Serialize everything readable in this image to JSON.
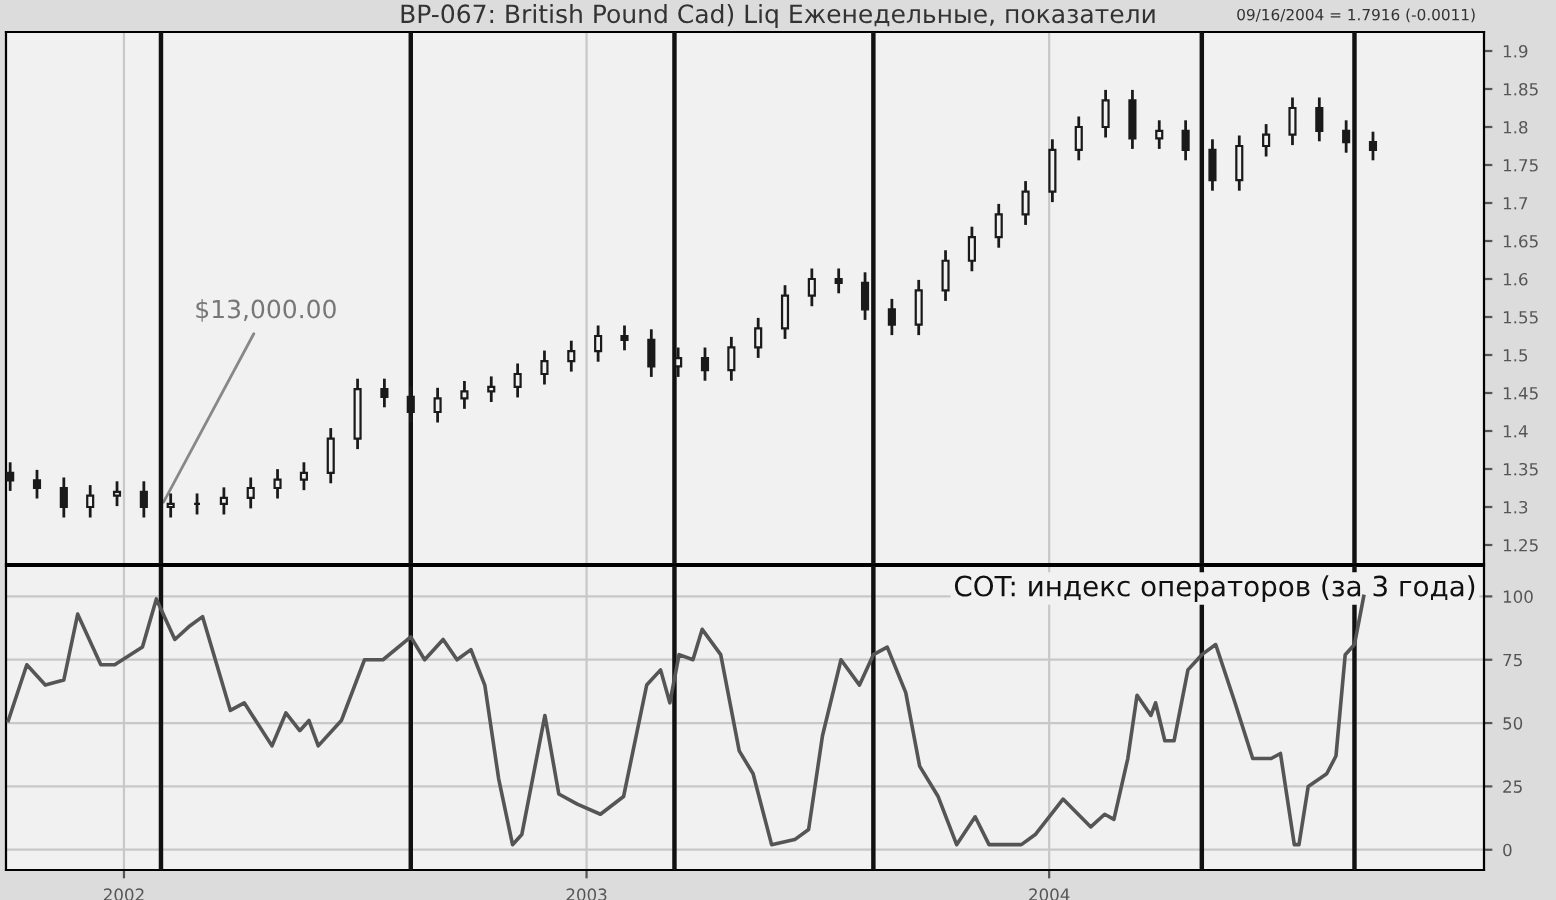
{
  "chart_data": [
    {
      "type": "candlestick",
      "title": "BP-067: British Pound Cad) Liq Еженедельные, показатели",
      "x": [
        2001.754,
        2001.812,
        2001.87,
        2001.927,
        2001.985,
        2002.043,
        2002.101,
        2002.158,
        2002.216,
        2002.274,
        2002.332,
        2002.389,
        2002.447,
        2002.505,
        2002.563,
        2002.62,
        2002.678,
        2002.736,
        2002.794,
        2002.851,
        2002.909,
        2002.967,
        2003.025,
        2003.082,
        2003.14,
        2003.198,
        2003.256,
        2003.313,
        2003.371,
        2003.429,
        2003.487,
        2003.545,
        2003.602,
        2003.66,
        2003.718,
        2003.776,
        2003.833,
        2003.891,
        2003.949,
        2004.007,
        2004.064,
        2004.122,
        2004.18,
        2004.238,
        2004.295,
        2004.353,
        2004.411,
        2004.469,
        2004.526,
        2004.584,
        2004.642,
        2004.7
      ],
      "ohlc": [
        [
          1.345,
          1.357,
          1.323,
          1.335
        ],
        [
          1.335,
          1.347,
          1.313,
          1.325
        ],
        [
          1.325,
          1.337,
          1.288,
          1.3
        ],
        [
          1.3,
          1.327,
          1.288,
          1.315
        ],
        [
          1.315,
          1.332,
          1.303,
          1.32
        ],
        [
          1.32,
          1.332,
          1.288,
          1.3
        ],
        [
          1.3,
          1.316,
          1.288,
          1.304
        ],
        [
          1.304,
          1.316,
          1.292,
          1.304
        ],
        [
          1.304,
          1.324,
          1.292,
          1.312
        ],
        [
          1.312,
          1.337,
          1.3,
          1.325
        ],
        [
          1.325,
          1.348,
          1.313,
          1.336
        ],
        [
          1.336,
          1.357,
          1.324,
          1.345
        ],
        [
          1.345,
          1.402,
          1.333,
          1.39
        ],
        [
          1.39,
          1.467,
          1.378,
          1.455
        ],
        [
          1.455,
          1.467,
          1.433,
          1.445
        ],
        [
          1.445,
          1.457,
          1.413,
          1.425
        ],
        [
          1.425,
          1.455,
          1.413,
          1.443
        ],
        [
          1.443,
          1.464,
          1.431,
          1.452
        ],
        [
          1.452,
          1.47,
          1.44,
          1.458
        ],
        [
          1.458,
          1.487,
          1.446,
          1.475
        ],
        [
          1.475,
          1.504,
          1.463,
          1.492
        ],
        [
          1.492,
          1.517,
          1.48,
          1.505
        ],
        [
          1.505,
          1.537,
          1.493,
          1.525
        ],
        [
          1.525,
          1.537,
          1.508,
          1.52
        ],
        [
          1.52,
          1.532,
          1.473,
          1.485
        ],
        [
          1.485,
          1.508,
          1.473,
          1.496
        ],
        [
          1.496,
          1.508,
          1.468,
          1.48
        ],
        [
          1.48,
          1.522,
          1.468,
          1.51
        ],
        [
          1.51,
          1.547,
          1.498,
          1.535
        ],
        [
          1.535,
          1.59,
          1.523,
          1.578
        ],
        [
          1.578,
          1.612,
          1.566,
          1.6
        ],
        [
          1.6,
          1.612,
          1.583,
          1.595
        ],
        [
          1.595,
          1.607,
          1.548,
          1.56
        ],
        [
          1.56,
          1.572,
          1.528,
          1.54
        ],
        [
          1.54,
          1.597,
          1.528,
          1.585
        ],
        [
          1.585,
          1.636,
          1.573,
          1.624
        ],
        [
          1.624,
          1.667,
          1.612,
          1.655
        ],
        [
          1.655,
          1.697,
          1.643,
          1.685
        ],
        [
          1.685,
          1.727,
          1.673,
          1.715
        ],
        [
          1.715,
          1.782,
          1.703,
          1.77
        ],
        [
          1.77,
          1.812,
          1.758,
          1.8
        ],
        [
          1.8,
          1.847,
          1.788,
          1.835
        ],
        [
          1.835,
          1.847,
          1.773,
          1.785
        ],
        [
          1.785,
          1.807,
          1.773,
          1.795
        ],
        [
          1.795,
          1.807,
          1.758,
          1.77
        ],
        [
          1.77,
          1.782,
          1.718,
          1.73
        ],
        [
          1.73,
          1.787,
          1.718,
          1.775
        ],
        [
          1.775,
          1.802,
          1.763,
          1.79
        ],
        [
          1.79,
          1.837,
          1.778,
          1.825
        ],
        [
          1.825,
          1.837,
          1.783,
          1.795
        ],
        [
          1.795,
          1.807,
          1.768,
          1.78
        ],
        [
          1.78,
          1.792,
          1.758,
          1.77
        ]
      ],
      "xlim": [
        2001.745,
        2004.94
      ],
      "ylim": [
        1.225,
        1.925
      ],
      "xticks": [
        2002,
        2003,
        2004
      ],
      "yticks": [
        1.25,
        1.3,
        1.35,
        1.4,
        1.45,
        1.5,
        1.55,
        1.6,
        1.65,
        1.7,
        1.75,
        1.8,
        1.85,
        1.9
      ],
      "tick_labels": "y",
      "grid": "x",
      "ref_lines": [
        {
          "axis": "x",
          "value": 2002.08,
          "color": "#111111"
        },
        {
          "axis": "x",
          "value": 2002.62,
          "color": "#111111"
        },
        {
          "axis": "x",
          "value": 2003.19,
          "color": "#111111"
        },
        {
          "axis": "x",
          "value": 2003.62,
          "color": "#111111"
        },
        {
          "axis": "x",
          "value": 2004.33,
          "color": "#111111"
        },
        {
          "axis": "x",
          "value": 2004.66,
          "color": "#111111"
        }
      ],
      "annotations": [
        {
          "text": "$13,000.00",
          "x": 2002.08,
          "y": 1.3
        },
        "09/16/2004 = 1.7916 (-0.0011)"
      ]
    },
    {
      "type": "line",
      "subtitle": "COT: индекс операторов (за 3 года)",
      "x": [
        2001.75,
        2001.79,
        2001.83,
        2001.87,
        2001.9,
        2001.95,
        2001.98,
        2002.04,
        2002.07,
        2002.11,
        2002.14,
        2002.17,
        2002.23,
        2002.26,
        2002.32,
        2002.35,
        2002.38,
        2002.4,
        2002.42,
        2002.47,
        2002.52,
        2002.56,
        2002.62,
        2002.65,
        2002.69,
        2002.72,
        2002.75,
        2002.78,
        2002.81,
        2002.84,
        2002.86,
        2002.91,
        2002.94,
        2002.98,
        2003.03,
        2003.08,
        2003.13,
        2003.16,
        2003.18,
        2003.2,
        2003.23,
        2003.25,
        2003.29,
        2003.33,
        2003.36,
        2003.4,
        2003.45,
        2003.48,
        2003.51,
        2003.55,
        2003.59,
        2003.62,
        2003.65,
        2003.69,
        2003.72,
        2003.76,
        2003.8,
        2003.84,
        2003.87,
        2003.94,
        2003.97,
        2004.03,
        2004.09,
        2004.12,
        2004.14,
        2004.17,
        2004.19,
        2004.22,
        2004.23,
        2004.25,
        2004.27,
        2004.3,
        2004.33,
        2004.36,
        2004.4,
        2004.44,
        2004.48,
        2004.5,
        2004.53,
        2004.54,
        2004.56,
        2004.6,
        2004.62,
        2004.64,
        2004.66,
        2004.68
      ],
      "series": [
        {
          "color": "#555555",
          "values": [
            51,
            73,
            65,
            67,
            93,
            73,
            73,
            80,
            99,
            83,
            88,
            92,
            55,
            58,
            41,
            54,
            47,
            51,
            41,
            51,
            75,
            75,
            84,
            75,
            83,
            75,
            79,
            65,
            28,
            2,
            6,
            53,
            22,
            18,
            14,
            21,
            65,
            71,
            58,
            77,
            75,
            87,
            77,
            39,
            30,
            2,
            4,
            8,
            45,
            75,
            65,
            77,
            80,
            62,
            33,
            21,
            2,
            13,
            2,
            2,
            6,
            20,
            9,
            14,
            12,
            36,
            61,
            53,
            58,
            43,
            43,
            71,
            77,
            81,
            59,
            36,
            36,
            38,
            2,
            2,
            25,
            30,
            37,
            77,
            81,
            100
          ]
        }
      ],
      "xlim": [
        2001.745,
        2004.94
      ],
      "ylim": [
        -8,
        112
      ],
      "xticks": [
        2002,
        2003,
        2004
      ],
      "yticks": [
        0,
        25,
        50,
        75,
        100
      ],
      "grid": true,
      "ref_lines": [
        {
          "axis": "x",
          "value": 2002.08,
          "color": "#111111"
        },
        {
          "axis": "x",
          "value": 2002.62,
          "color": "#111111"
        },
        {
          "axis": "x",
          "value": 2003.19,
          "color": "#111111"
        },
        {
          "axis": "x",
          "value": 2003.62,
          "color": "#111111"
        },
        {
          "axis": "x",
          "value": 2004.33,
          "color": "#111111"
        },
        {
          "axis": "x",
          "value": 2004.66,
          "color": "#111111"
        }
      ]
    }
  ]
}
